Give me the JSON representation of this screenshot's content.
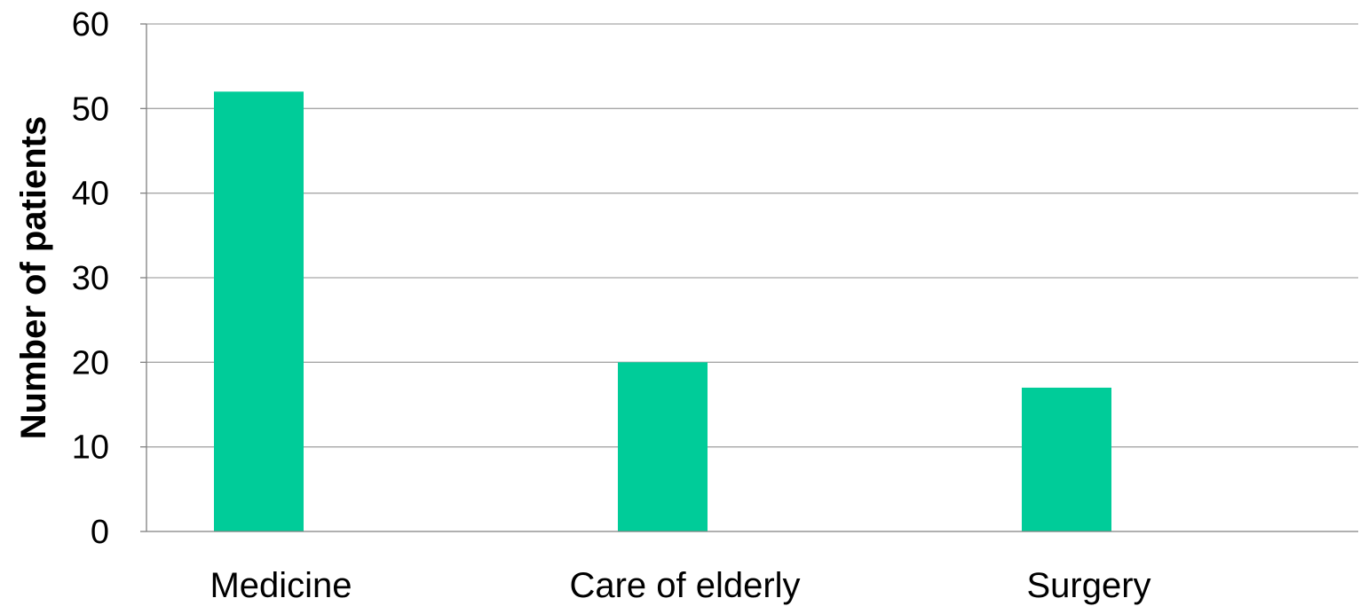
{
  "chart_data": {
    "type": "bar",
    "categories": [
      "Medicine",
      "Care of elderly",
      "Surgery"
    ],
    "values": [
      52,
      20,
      17
    ],
    "ylabel": "Number of patients",
    "xlabel": "",
    "ylim": [
      0,
      60
    ],
    "yticks": [
      "0",
      "10",
      "20",
      "30",
      "40",
      "50",
      "60"
    ],
    "grid": true,
    "legend": false,
    "colors": {
      "bar": "#00CC99",
      "grid": "#A6A6A6",
      "axis": "#808080"
    }
  }
}
